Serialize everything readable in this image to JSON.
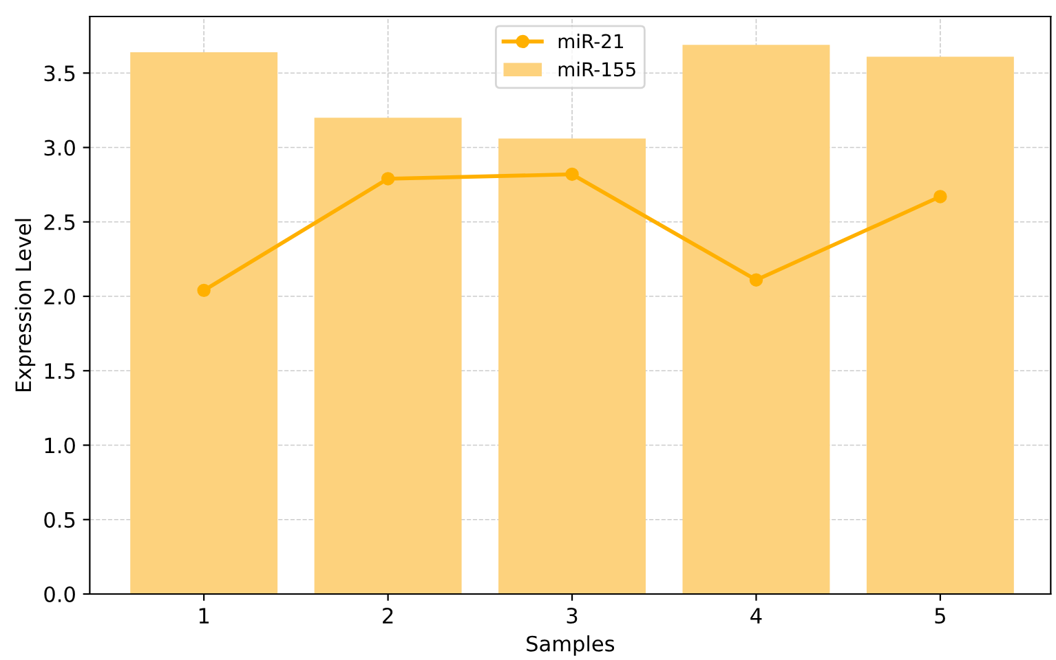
{
  "chart_data": {
    "type": "bar",
    "xlabel": "Samples",
    "ylabel": "Expression Level",
    "x": [
      1,
      2,
      3,
      4,
      5
    ],
    "series": [
      {
        "name": "miR-21",
        "type": "line",
        "color": "#ffb000",
        "marker": "circle",
        "values": [
          2.04,
          2.79,
          2.82,
          2.11,
          2.67
        ]
      },
      {
        "name": "miR-155",
        "color": "#fdd27d",
        "values": [
          3.64,
          3.2,
          3.06,
          3.69,
          3.61
        ]
      }
    ],
    "xlim": [
      0.38,
      5.6
    ],
    "xticks": [
      1,
      2,
      3,
      4,
      5
    ],
    "ylim": [
      0,
      3.88
    ],
    "yticks": [
      {
        "value": 0,
        "label": "0.0"
      },
      {
        "value": 0.5,
        "label": "0.5"
      },
      {
        "value": 1,
        "label": "1.0"
      },
      {
        "value": 1.5,
        "label": "1.5"
      },
      {
        "value": 2,
        "label": "2.0"
      },
      {
        "value": 2.5,
        "label": "2.5"
      },
      {
        "value": 3,
        "label": "3.0"
      },
      {
        "value": 3.5,
        "label": "3.5"
      }
    ],
    "grid": true,
    "legend": "top"
  }
}
